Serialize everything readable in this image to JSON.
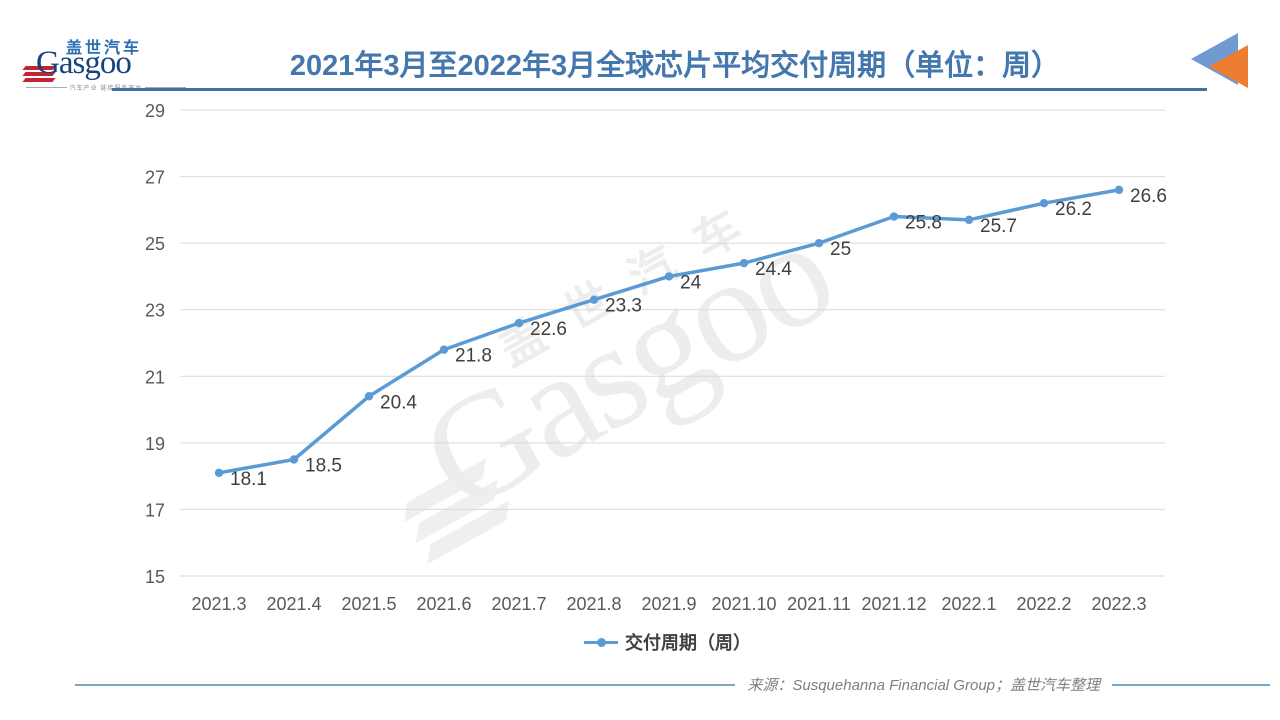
{
  "header": {
    "logo": {
      "cjk": "盖世汽车",
      "latin": "Gasgoo",
      "tagline": "汽车产业 链接服务平台"
    },
    "title": "2021年3月至2022年3月全球芯片平均交付周期（单位：周）",
    "colors": {
      "title_text": "#4477ad",
      "underline": "#44719e",
      "triangle_blue": "#6f9bd1",
      "triangle_orange": "#ed7d31"
    }
  },
  "chart_data": {
    "type": "line",
    "title": "2021年3月至2022年3月全球芯片平均交付周期（单位：周）",
    "categories": [
      "2021.3",
      "2021.4",
      "2021.5",
      "2021.6",
      "2021.7",
      "2021.8",
      "2021.9",
      "2021.10",
      "2021.11",
      "2021.12",
      "2022.1",
      "2022.2",
      "2022.3"
    ],
    "series": [
      {
        "name": "交付周期（周）",
        "values": [
          18.1,
          18.5,
          20.4,
          21.8,
          22.6,
          23.3,
          24,
          24.4,
          25,
          25.8,
          25.7,
          26.2,
          26.6
        ],
        "color": "#5b9bd5"
      }
    ],
    "xlabel": "",
    "ylabel": "",
    "ylim": [
      15,
      29
    ],
    "yticks": [
      15,
      17,
      19,
      21,
      23,
      25,
      27,
      29
    ],
    "grid": true,
    "grid_color": "#d9d9d9",
    "data_labels": true,
    "legend_position": "bottom"
  },
  "watermark": {
    "latin": "Gasgoo",
    "cjk": "盖世汽车"
  },
  "footer": {
    "source": "来源：Susquehanna Financial Group；盖世汽车整理"
  }
}
